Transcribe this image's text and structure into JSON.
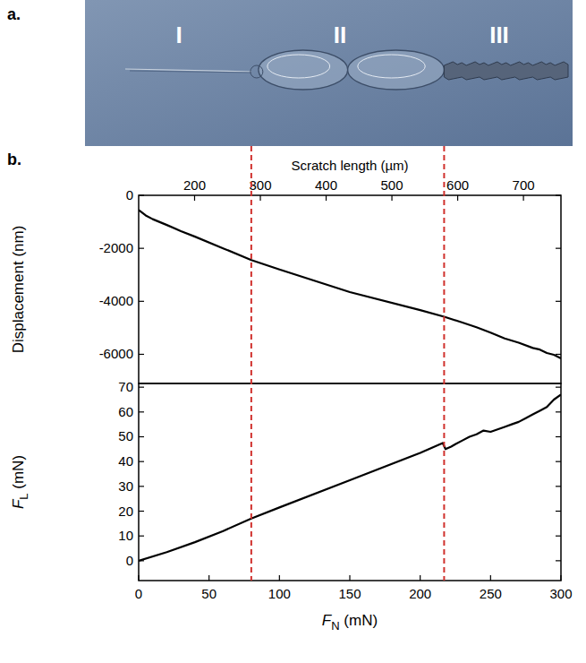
{
  "panels": {
    "a": "a.",
    "b": "b."
  },
  "regions": [
    "I",
    "II",
    "III"
  ],
  "markers": {
    "x": [
      80,
      217
    ],
    "color": "#d0312d",
    "line_style": "dashed"
  },
  "chart_data": [
    {
      "type": "line",
      "ylabel": "Displacement (nm)",
      "x2label": "Scratch length  (µm)",
      "x2lim": [
        115,
        757
      ],
      "x2ticks": [
        200,
        300,
        400,
        500,
        600,
        700
      ],
      "xlim": [
        0,
        300
      ],
      "ylim": [
        -7100,
        0
      ],
      "yticks": [
        0,
        -2000,
        -4000,
        -6000
      ],
      "color": "#000000",
      "x": [
        0,
        5,
        10,
        20,
        30,
        40,
        60,
        80,
        100,
        150,
        200,
        217,
        230,
        240,
        250,
        260,
        270,
        280,
        285,
        290,
        295,
        300
      ],
      "values": [
        -550,
        -760,
        -900,
        -1120,
        -1350,
        -1560,
        -2000,
        -2440,
        -2800,
        -3650,
        -4330,
        -4580,
        -4800,
        -4980,
        -5180,
        -5400,
        -5560,
        -5760,
        -5820,
        -5950,
        -6020,
        -6150
      ]
    },
    {
      "type": "line",
      "ylabel": {
        "symbol": "F",
        "subscript": "L",
        "text": " (mN)"
      },
      "xlabel": {
        "symbol": "F",
        "subscript": "N",
        "text": " (mN)"
      },
      "xlim": [
        0,
        300
      ],
      "xticks": [
        0,
        50,
        100,
        150,
        200,
        250,
        300
      ],
      "ylim": [
        -8,
        71.5
      ],
      "yticks": [
        0,
        10,
        20,
        30,
        40,
        50,
        60,
        70
      ],
      "color": "#000000",
      "x": [
        0,
        20,
        40,
        60,
        80,
        100,
        150,
        200,
        216,
        218,
        222,
        225,
        230,
        235,
        240,
        245,
        250,
        255,
        260,
        265,
        270,
        275,
        280,
        285,
        290,
        295,
        300
      ],
      "values": [
        0,
        3.5,
        7.5,
        12,
        17,
        21.5,
        32.5,
        43.5,
        47.5,
        45,
        46,
        47,
        48.5,
        50,
        51,
        52.5,
        52,
        53,
        54,
        55,
        56,
        57.5,
        59,
        60.5,
        62,
        65,
        67
      ]
    }
  ]
}
